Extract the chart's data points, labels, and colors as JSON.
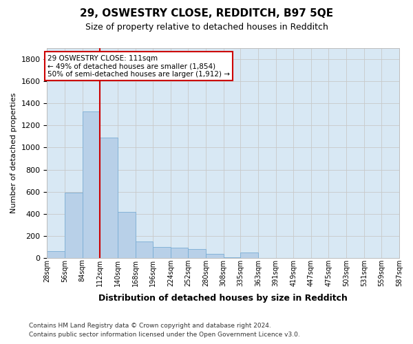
{
  "title": "29, OSWESTRY CLOSE, REDDITCH, B97 5QE",
  "subtitle": "Size of property relative to detached houses in Redditch",
  "xlabel": "Distribution of detached houses by size in Redditch",
  "ylabel": "Number of detached properties",
  "footer_line1": "Contains HM Land Registry data © Crown copyright and database right 2024.",
  "footer_line2": "Contains public sector information licensed under the Open Government Licence v3.0.",
  "bins": [
    28,
    56,
    84,
    112,
    140,
    168,
    196,
    224,
    252,
    280,
    308,
    335,
    363,
    391,
    419,
    447,
    475,
    503,
    531,
    559,
    587
  ],
  "bin_labels": [
    "28sqm",
    "56sqm",
    "84sqm",
    "112sqm",
    "140sqm",
    "168sqm",
    "196sqm",
    "224sqm",
    "252sqm",
    "280sqm",
    "308sqm",
    "335sqm",
    "363sqm",
    "391sqm",
    "419sqm",
    "447sqm",
    "475sqm",
    "503sqm",
    "531sqm",
    "559sqm",
    "587sqm"
  ],
  "bar_values": [
    60,
    590,
    1330,
    1090,
    420,
    150,
    100,
    95,
    80,
    35,
    5,
    50,
    0,
    0,
    0,
    0,
    0,
    0,
    0,
    0
  ],
  "bar_color": "#b8d0e8",
  "bar_edge_color": "#7aadd4",
  "vline_x": 112,
  "vline_color": "#cc0000",
  "annotation_text": "29 OSWESTRY CLOSE: 111sqm\n← 49% of detached houses are smaller (1,854)\n50% of semi-detached houses are larger (1,912) →",
  "annotation_box_color": "#ffffff",
  "annotation_box_edge": "#cc0000",
  "ylim": [
    0,
    1900
  ],
  "yticks": [
    0,
    200,
    400,
    600,
    800,
    1000,
    1200,
    1400,
    1600,
    1800
  ],
  "grid_color": "#c8c8c8",
  "plot_bg": "#d8e8f4",
  "fig_bg": "#ffffff",
  "title_fontsize": 11,
  "subtitle_fontsize": 9,
  "ylabel_fontsize": 8,
  "xlabel_fontsize": 9,
  "tick_fontsize": 7,
  "annotation_fontsize": 7.5,
  "footer_fontsize": 6.5
}
